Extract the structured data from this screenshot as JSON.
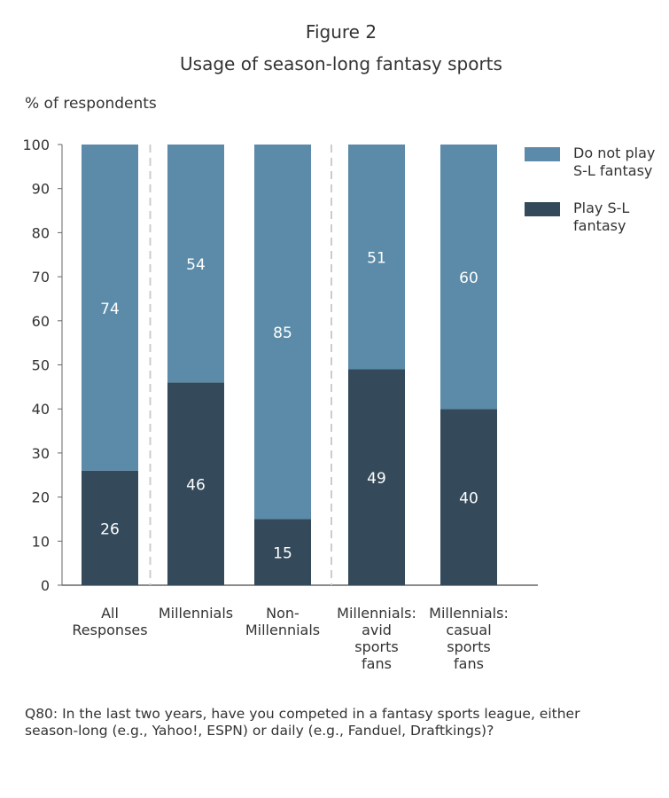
{
  "figure_label": "Figure 2",
  "title": "Usage of season-long fantasy sports",
  "y_axis_title": "% of respondents",
  "footnote": "Q80: In the last two years, have you competed in a fantasy sports league, either season-long (e.g., Yahoo!, ESPN) or daily (e.g., Fanduel, Draftkings)?",
  "legend": [
    {
      "label": "Do not play\nS-L fantasy",
      "color": "#5b8ba8"
    },
    {
      "label": "Play S-L\nfantasy",
      "color": "#344a5a"
    }
  ],
  "chart_data": {
    "type": "bar",
    "stacked": true,
    "ylim": [
      0,
      100
    ],
    "yticks": [
      0,
      10,
      20,
      30,
      40,
      50,
      60,
      70,
      80,
      90,
      100
    ],
    "categories": [
      [
        "All",
        "Responses"
      ],
      [
        "Millennials"
      ],
      [
        "Non-",
        "Millennials"
      ],
      [
        "Millennials:",
        "avid",
        "sports",
        "fans"
      ],
      [
        "Millennials:",
        "casual",
        "sports",
        "fans"
      ]
    ],
    "series": [
      {
        "name": "Play S-L fantasy",
        "color": "#344a5a",
        "values": [
          26,
          46,
          15,
          49,
          40
        ]
      },
      {
        "name": "Do not play S-L fantasy",
        "color": "#5b8ba8",
        "values": [
          74,
          54,
          85,
          51,
          60
        ]
      }
    ],
    "separators_after": [
      0,
      2
    ],
    "legend_position": "right",
    "grid": false
  }
}
